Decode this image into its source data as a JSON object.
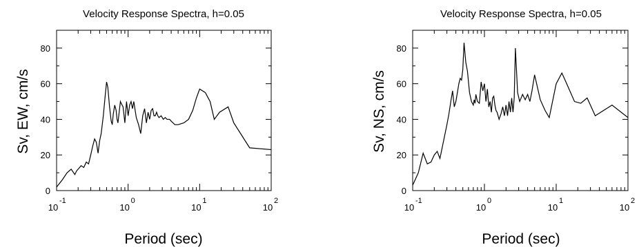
{
  "chart_data": [
    {
      "type": "line",
      "title": "Velocity Response Spectra, h=0.05",
      "xlabel": "Period (sec)",
      "ylabel": "Sv, EW, cm/s",
      "xscale": "log",
      "xlim": [
        0.1,
        100
      ],
      "ylim": [
        0,
        90
      ],
      "xticks": [
        {
          "base": "10",
          "exp": "-1"
        },
        {
          "base": "10",
          "exp": "0"
        },
        {
          "base": "10",
          "exp": "1"
        },
        {
          "base": "10",
          "exp": "2"
        }
      ],
      "yticks": [
        "0",
        "20",
        "40",
        "60",
        "80"
      ],
      "grid": false,
      "series": [
        {
          "x": [
            0.1,
            0.12,
            0.14,
            0.16,
            0.18,
            0.19,
            0.21,
            0.22,
            0.24,
            0.26,
            0.28,
            0.3,
            0.32,
            0.34,
            0.36,
            0.38,
            0.4,
            0.42,
            0.45,
            0.48,
            0.5,
            0.52,
            0.55,
            0.58,
            0.6,
            0.62,
            0.65,
            0.68,
            0.7,
            0.72,
            0.75,
            0.78,
            0.8,
            0.85,
            0.9,
            0.95,
            1.0,
            1.05,
            1.1,
            1.15,
            1.2,
            1.3,
            1.4,
            1.5,
            1.6,
            1.7,
            1.8,
            1.9,
            2.0,
            2.1,
            2.2,
            2.3,
            2.4,
            2.5,
            2.6,
            2.7,
            2.9,
            3.1,
            3.3,
            3.5,
            3.8,
            4.0,
            4.5,
            5.0,
            6.0,
            7.0,
            8.0,
            9.0,
            10.0,
            12.0,
            14.0,
            16.0,
            19.0,
            25.0,
            30.0,
            50.0,
            100.0
          ],
          "y": [
            2,
            6,
            10,
            12,
            9,
            11,
            13,
            14,
            13,
            16,
            15,
            20,
            25,
            29,
            27,
            21,
            28,
            32,
            42,
            54,
            61,
            58,
            47,
            39,
            37,
            43,
            48,
            45,
            40,
            38,
            44,
            50,
            49,
            47,
            38,
            50,
            42,
            48,
            50,
            46,
            50,
            41,
            37,
            32,
            42,
            46,
            38,
            44,
            40,
            45,
            46,
            42,
            42,
            44,
            42,
            41,
            42,
            40,
            41,
            40,
            40,
            39,
            37,
            37,
            38,
            40,
            45,
            52,
            57,
            55,
            50,
            40,
            44,
            47,
            38,
            24,
            23
          ]
        }
      ]
    },
    {
      "type": "line",
      "title": "Velocity Response Spectra, h=0.05",
      "xlabel": "Period (sec)",
      "ylabel": "Sv, NS, cm/s",
      "xscale": "log",
      "xlim": [
        0.1,
        100
      ],
      "ylim": [
        0,
        90
      ],
      "xticks": [
        {
          "base": "10",
          "exp": "-1"
        },
        {
          "base": "10",
          "exp": "0"
        },
        {
          "base": "10",
          "exp": "1"
        },
        {
          "base": "10",
          "exp": "2"
        }
      ],
      "yticks": [
        "0",
        "20",
        "40",
        "60",
        "80"
      ],
      "grid": false,
      "series": [
        {
          "x": [
            0.1,
            0.12,
            0.14,
            0.16,
            0.18,
            0.2,
            0.22,
            0.24,
            0.27,
            0.3,
            0.32,
            0.34,
            0.36,
            0.38,
            0.4,
            0.42,
            0.44,
            0.46,
            0.48,
            0.5,
            0.52,
            0.55,
            0.58,
            0.62,
            0.66,
            0.7,
            0.72,
            0.74,
            0.76,
            0.8,
            0.85,
            0.9,
            0.95,
            1.0,
            1.05,
            1.1,
            1.15,
            1.2,
            1.25,
            1.3,
            1.35,
            1.4,
            1.45,
            1.5,
            1.6,
            1.7,
            1.8,
            1.9,
            2.0,
            2.1,
            2.2,
            2.3,
            2.4,
            2.5,
            2.6,
            2.7,
            2.9,
            3.1,
            3.4,
            3.7,
            4.0,
            4.3,
            4.6,
            5.0,
            6.0,
            7.0,
            8.0,
            10.0,
            12.0,
            14.0,
            18.0,
            22.0,
            27.0,
            35.0,
            60.0,
            100.0
          ],
          "y": [
            3,
            10,
            21,
            15,
            16,
            20,
            22,
            18,
            28,
            37,
            43,
            50,
            56,
            47,
            50,
            55,
            60,
            63,
            62,
            68,
            83,
            72,
            67,
            55,
            50,
            48,
            51,
            49,
            54,
            50,
            49,
            61,
            56,
            60,
            50,
            57,
            47,
            50,
            44,
            52,
            53,
            48,
            45,
            44,
            40,
            43,
            47,
            42,
            48,
            42,
            50,
            44,
            52,
            44,
            52,
            80,
            55,
            50,
            54,
            51,
            54,
            50,
            56,
            65,
            51,
            45,
            41,
            60,
            66,
            60,
            50,
            49,
            52,
            42,
            48,
            41
          ]
        }
      ]
    }
  ]
}
